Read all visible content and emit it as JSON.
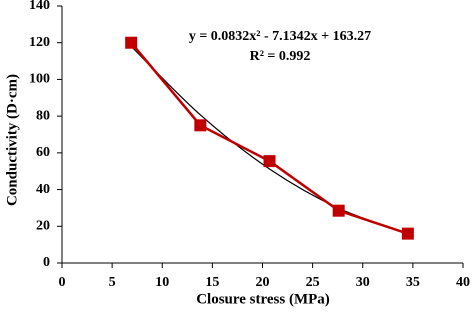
{
  "chart_data": {
    "type": "line",
    "x_label": "Closure stress (MPa)",
    "y_label": "Conductivity (D·cm)",
    "x": [
      6.9,
      13.8,
      20.7,
      27.6,
      34.5
    ],
    "series": [
      {
        "color": "#c00000",
        "values": [
          120,
          75,
          55.5,
          28.5,
          16
        ],
        "markers": true
      },
      {
        "color": "#000000",
        "values": [
          118,
          80.7,
          51.2,
          29.8,
          16.2
        ],
        "smooth": true
      }
    ],
    "annotations": [
      "y = 0.0832x² - 7.1342x + 163.27",
      "R² = 0.992"
    ],
    "xlim": [
      0,
      40
    ],
    "xticks": [
      0,
      5,
      10,
      15,
      20,
      25,
      30,
      35,
      40
    ],
    "ylim": [
      0,
      140
    ],
    "yticks": [
      0,
      20,
      40,
      60,
      80,
      100,
      120,
      140
    ],
    "grid": false
  }
}
